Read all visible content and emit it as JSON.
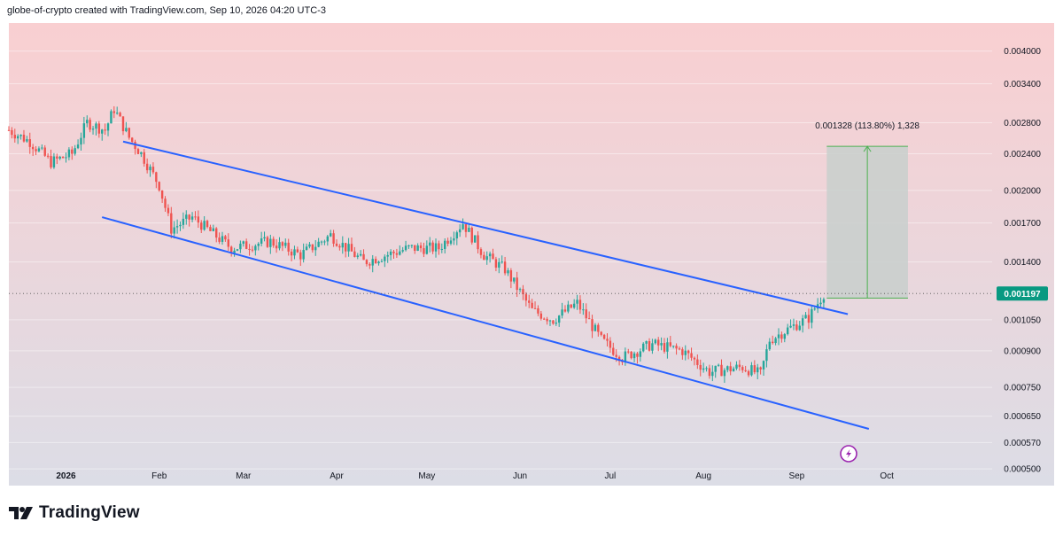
{
  "header": {
    "caption": "globe-of-crypto created with TradingView.com, Sep 10, 2026 04:20 UTC-3"
  },
  "brand": {
    "logo_text": "TradingView"
  },
  "colors": {
    "bg_top": "#f9cfd1",
    "bg_bottom": "#dcdde6",
    "up_candle": "#26a69a",
    "down_candle": "#ef5350",
    "channel_line": "#2962ff",
    "target_arrow": "#4caf50",
    "target_box": "#c8cfcc",
    "price_label_bg": "#089981"
  },
  "chart_data": {
    "type": "candlestick",
    "y_scale": "log",
    "ylim": [
      0.00046,
      0.0046
    ],
    "x_range": [
      "2025-12-13",
      "2026-11-05"
    ],
    "x_ticks": [
      {
        "date": "2026-01-01",
        "label": "2026",
        "bold": true
      },
      {
        "date": "2026-02-01",
        "label": "Feb"
      },
      {
        "date": "2026-03-01",
        "label": "Mar"
      },
      {
        "date": "2026-04-01",
        "label": "Apr"
      },
      {
        "date": "2026-05-01",
        "label": "May"
      },
      {
        "date": "2026-06-01",
        "label": "Jun"
      },
      {
        "date": "2026-07-01",
        "label": "Jul"
      },
      {
        "date": "2026-08-01",
        "label": "Aug"
      },
      {
        "date": "2026-09-01",
        "label": "Sep"
      },
      {
        "date": "2026-10-01",
        "label": "Oct"
      }
    ],
    "y_ticks": [
      "0.004000",
      "0.003400",
      "0.002800",
      "0.002400",
      "0.002000",
      "0.001700",
      "0.001400",
      "0.001050",
      "0.000900",
      "0.000750",
      "0.000650",
      "0.000570",
      "0.000500"
    ],
    "current_price": {
      "value": 0.001197,
      "label": "0.001197"
    },
    "close_path": [
      [
        "2025-12-13",
        0.0027
      ],
      [
        "2025-12-20",
        0.00255
      ],
      [
        "2025-12-27",
        0.0023
      ],
      [
        "2026-01-03",
        0.0024
      ],
      [
        "2026-01-08",
        0.0028
      ],
      [
        "2026-01-14",
        0.0027
      ],
      [
        "2026-01-17",
        0.003
      ],
      [
        "2026-01-22",
        0.0026
      ],
      [
        "2026-01-26",
        0.0024
      ],
      [
        "2026-02-01",
        0.00205
      ],
      [
        "2026-02-05",
        0.00165
      ],
      [
        "2026-02-12",
        0.00175
      ],
      [
        "2026-02-25",
        0.0015
      ],
      [
        "2026-03-10",
        0.00155
      ],
      [
        "2026-03-20",
        0.00145
      ],
      [
        "2026-03-30",
        0.0016
      ],
      [
        "2026-04-10",
        0.0014
      ],
      [
        "2026-04-25",
        0.0015
      ],
      [
        "2026-05-05",
        0.0015
      ],
      [
        "2026-05-13",
        0.0017
      ],
      [
        "2026-05-20",
        0.00145
      ],
      [
        "2026-05-27",
        0.00135
      ],
      [
        "2026-06-05",
        0.0011
      ],
      [
        "2026-06-12",
        0.00105
      ],
      [
        "2026-06-20",
        0.00114
      ],
      [
        "2026-06-28",
        0.00095
      ],
      [
        "2026-07-05",
        0.00087
      ],
      [
        "2026-07-15",
        0.00093
      ],
      [
        "2026-07-25",
        0.0009
      ],
      [
        "2026-08-03",
        0.00081
      ],
      [
        "2026-08-14",
        0.00083
      ],
      [
        "2026-08-20",
        0.0008
      ],
      [
        "2026-08-23",
        0.00095
      ],
      [
        "2026-08-30",
        0.00101
      ],
      [
        "2026-09-05",
        0.00106
      ],
      [
        "2026-09-10",
        0.001197
      ]
    ],
    "channel_lines": [
      {
        "name": "upper",
        "from": [
          "2026-01-20",
          0.00255
        ],
        "to": [
          "2026-09-18",
          0.00108
        ]
      },
      {
        "name": "lower",
        "from": [
          "2026-01-13",
          0.00175
        ],
        "to": [
          "2026-09-25",
          0.00061
        ]
      }
    ],
    "price_range_measure": {
      "from_date": "2026-09-11",
      "to_date": "2026-10-08",
      "low": 0.00117,
      "high": 0.00249,
      "label": "0.001328 (113.80%) 1,328"
    }
  }
}
